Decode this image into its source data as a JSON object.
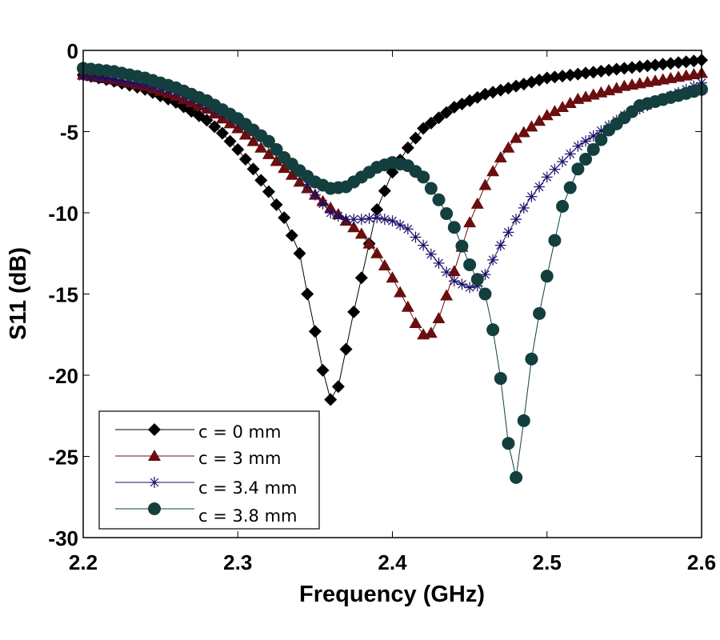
{
  "chart_data": {
    "type": "line",
    "title": "",
    "xlabel": "Frequency (GHz)",
    "ylabel": "S11 (dB)",
    "xlim": [
      2.2,
      2.6
    ],
    "ylim": [
      -30,
      0
    ],
    "xticks": [
      2.2,
      2.3,
      2.4,
      2.5,
      2.6
    ],
    "xtick_labels": [
      "2.2",
      "2.3",
      "2.4",
      "2.5",
      "2.6"
    ],
    "yticks": [
      0,
      -5,
      -10,
      -15,
      -20,
      -25,
      -30
    ],
    "ytick_labels": [
      "0",
      "-5",
      "-10",
      "-15",
      "-20",
      "-25",
      "-30"
    ],
    "grid": false,
    "legend_position": "bottom-left",
    "series": [
      {
        "name": "c = 0 mm",
        "color": "#000000",
        "marker": "diamond",
        "x": [
          2.2,
          2.22,
          2.24,
          2.26,
          2.28,
          2.29,
          2.3,
          2.31,
          2.32,
          2.33,
          2.34,
          2.345,
          2.35,
          2.355,
          2.36,
          2.365,
          2.37,
          2.375,
          2.38,
          2.385,
          2.39,
          2.4,
          2.41,
          2.42,
          2.44,
          2.46,
          2.5,
          2.55,
          2.6
        ],
        "y": [
          -1.5,
          -1.9,
          -2.4,
          -3.2,
          -4.3,
          -5.1,
          -6.1,
          -7.3,
          -8.7,
          -10.3,
          -12.5,
          -15.0,
          -17.3,
          -19.7,
          -21.5,
          -20.7,
          -18.4,
          -16.1,
          -14.0,
          -11.9,
          -9.8,
          -7.5,
          -6.0,
          -4.8,
          -3.5,
          -2.7,
          -1.7,
          -1.1,
          -0.6
        ]
      },
      {
        "name": "c = 3 mm",
        "color": "#6b0e0e",
        "marker": "triangle",
        "x": [
          2.2,
          2.22,
          2.24,
          2.26,
          2.28,
          2.3,
          2.32,
          2.34,
          2.36,
          2.37,
          2.38,
          2.39,
          2.4,
          2.41,
          2.415,
          2.42,
          2.425,
          2.43,
          2.435,
          2.44,
          2.45,
          2.46,
          2.47,
          2.48,
          2.5,
          2.52,
          2.55,
          2.6
        ],
        "y": [
          -1.5,
          -1.8,
          -2.2,
          -2.8,
          -3.6,
          -4.8,
          -6.4,
          -8.1,
          -9.7,
          -10.5,
          -11.3,
          -12.5,
          -14.0,
          -15.8,
          -16.8,
          -17.5,
          -17.4,
          -16.5,
          -15.1,
          -13.6,
          -10.6,
          -8.3,
          -6.6,
          -5.4,
          -4.0,
          -3.0,
          -2.2,
          -1.4
        ]
      },
      {
        "name": "c = 3.4 mm",
        "color": "#1a0f6b",
        "marker": "asterisk",
        "x": [
          2.2,
          2.22,
          2.24,
          2.26,
          2.28,
          2.3,
          2.32,
          2.34,
          2.35,
          2.36,
          2.37,
          2.38,
          2.39,
          2.4,
          2.41,
          2.42,
          2.43,
          2.44,
          2.45,
          2.455,
          2.46,
          2.47,
          2.48,
          2.49,
          2.5,
          2.52,
          2.55,
          2.6
        ],
        "y": [
          -1.6,
          -1.8,
          -2.1,
          -2.6,
          -3.4,
          -4.4,
          -5.7,
          -7.6,
          -8.9,
          -10.0,
          -10.4,
          -10.4,
          -10.3,
          -10.5,
          -11.0,
          -12.0,
          -13.1,
          -14.2,
          -14.6,
          -14.5,
          -13.8,
          -12.0,
          -10.4,
          -9.0,
          -7.8,
          -5.9,
          -4.0,
          -2.0
        ]
      },
      {
        "name": "c = 3.8 mm",
        "color": "#133f3f",
        "marker": "circle",
        "x": [
          2.2,
          2.22,
          2.24,
          2.26,
          2.28,
          2.3,
          2.32,
          2.33,
          2.34,
          2.35,
          2.36,
          2.37,
          2.38,
          2.39,
          2.4,
          2.41,
          2.42,
          2.43,
          2.44,
          2.45,
          2.46,
          2.465,
          2.47,
          2.475,
          2.48,
          2.485,
          2.49,
          2.495,
          2.5,
          2.505,
          2.51,
          2.52,
          2.54,
          2.56,
          2.6
        ],
        "y": [
          -1.1,
          -1.3,
          -1.7,
          -2.3,
          -3.1,
          -4.2,
          -5.6,
          -6.6,
          -7.4,
          -8.1,
          -8.5,
          -8.4,
          -7.8,
          -7.2,
          -6.9,
          -7.1,
          -7.8,
          -9.2,
          -10.9,
          -13.2,
          -15.0,
          -17.2,
          -20.2,
          -24.2,
          -26.3,
          -22.8,
          -19.0,
          -16.2,
          -13.9,
          -11.7,
          -9.6,
          -7.3,
          -4.9,
          -3.4,
          -2.4
        ]
      }
    ]
  }
}
